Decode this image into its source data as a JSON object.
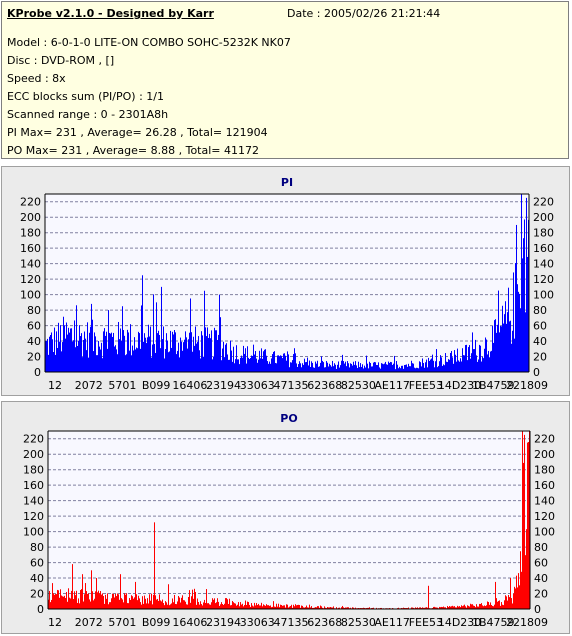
{
  "header": {
    "title": "KProbe v2.1.0 - Designed by Karr",
    "date": "Date : 2005/02/26 21:21:44",
    "lines": [
      "Model : 6-0-1-0 LITE-ON COMBO SOHC-5232K NK07",
      "Disc : DVD-ROM ,  []",
      "Speed : 8x",
      "ECC blocks sum (PI/PO) : 1/1",
      "Scanned range : 0 - 2301A8h",
      "PI Max= 231 , Average= 26.28 , Total= 121904",
      "PO Max= 231 , Average= 8.88 , Total= 41172"
    ]
  },
  "chart_data": [
    {
      "type": "bar",
      "title": "PI",
      "color": "#0000ff",
      "ylim": [
        0,
        230
      ],
      "y_ticks": [
        0,
        20,
        40,
        60,
        80,
        100,
        120,
        140,
        160,
        180,
        200,
        220
      ],
      "x_tick_labels": [
        "12",
        "2072",
        "5701",
        "B099",
        "16406",
        "23194",
        "33063",
        "47135",
        "62368",
        "82530",
        "AE117",
        "FEE53",
        "14D230",
        "1B4759",
        "221809"
      ],
      "grid": true,
      "profile": [
        [
          0,
          40
        ],
        [
          0.04,
          55
        ],
        [
          0.1,
          50
        ],
        [
          0.2,
          48
        ],
        [
          0.3,
          45
        ],
        [
          0.36,
          42
        ],
        [
          0.4,
          28
        ],
        [
          0.5,
          18
        ],
        [
          0.55,
          12
        ],
        [
          0.6,
          11
        ],
        [
          0.7,
          10
        ],
        [
          0.75,
          11
        ],
        [
          0.8,
          16
        ],
        [
          0.85,
          22
        ],
        [
          0.9,
          35
        ],
        [
          0.93,
          50
        ],
        [
          0.95,
          70
        ],
        [
          0.97,
          100
        ],
        [
          0.98,
          130
        ],
        [
          0.99,
          180
        ],
        [
          1.0,
          200
        ]
      ],
      "spikes": [
        [
          0.2,
          125
        ],
        [
          0.23,
          90
        ],
        [
          0.24,
          110
        ],
        [
          0.3,
          95
        ],
        [
          0.33,
          105
        ],
        [
          0.36,
          100
        ],
        [
          0.3,
          90
        ],
        [
          0.13,
          80
        ],
        [
          0.16,
          85
        ],
        [
          0.095,
          88
        ],
        [
          0.975,
          190
        ],
        [
          0.985,
          231
        ],
        [
          0.995,
          225
        ]
      ]
    },
    {
      "type": "bar",
      "title": "PO",
      "color": "#ff0000",
      "ylim": [
        0,
        230
      ],
      "y_ticks": [
        0,
        20,
        40,
        60,
        80,
        100,
        120,
        140,
        160,
        180,
        200,
        220
      ],
      "x_tick_labels": [
        "12",
        "2072",
        "5701",
        "B099",
        "16406",
        "23194",
        "33063",
        "47135",
        "62368",
        "82530",
        "AE117",
        "FEE53",
        "14D230",
        "1B4759",
        "221809"
      ],
      "grid": true,
      "profile": [
        [
          0,
          20
        ],
        [
          0.04,
          22
        ],
        [
          0.1,
          18
        ],
        [
          0.2,
          15
        ],
        [
          0.3,
          13
        ],
        [
          0.36,
          11
        ],
        [
          0.45,
          6
        ],
        [
          0.55,
          3
        ],
        [
          0.6,
          2
        ],
        [
          0.7,
          1
        ],
        [
          0.8,
          2
        ],
        [
          0.85,
          4
        ],
        [
          0.9,
          6
        ],
        [
          0.94,
          10
        ],
        [
          0.96,
          15
        ],
        [
          0.97,
          25
        ],
        [
          0.98,
          60
        ],
        [
          0.99,
          180
        ],
        [
          1.0,
          200
        ]
      ],
      "spikes": [
        [
          0.05,
          58
        ],
        [
          0.07,
          45
        ],
        [
          0.09,
          50
        ],
        [
          0.1,
          40
        ],
        [
          0.15,
          45
        ],
        [
          0.18,
          35
        ],
        [
          0.22,
          112
        ],
        [
          0.22,
          98
        ],
        [
          0.25,
          32
        ],
        [
          0.3,
          25
        ],
        [
          0.79,
          30
        ],
        [
          0.93,
          35
        ],
        [
          0.96,
          40
        ],
        [
          0.985,
          231
        ],
        [
          0.99,
          225
        ],
        [
          0.995,
          215
        ]
      ]
    }
  ]
}
